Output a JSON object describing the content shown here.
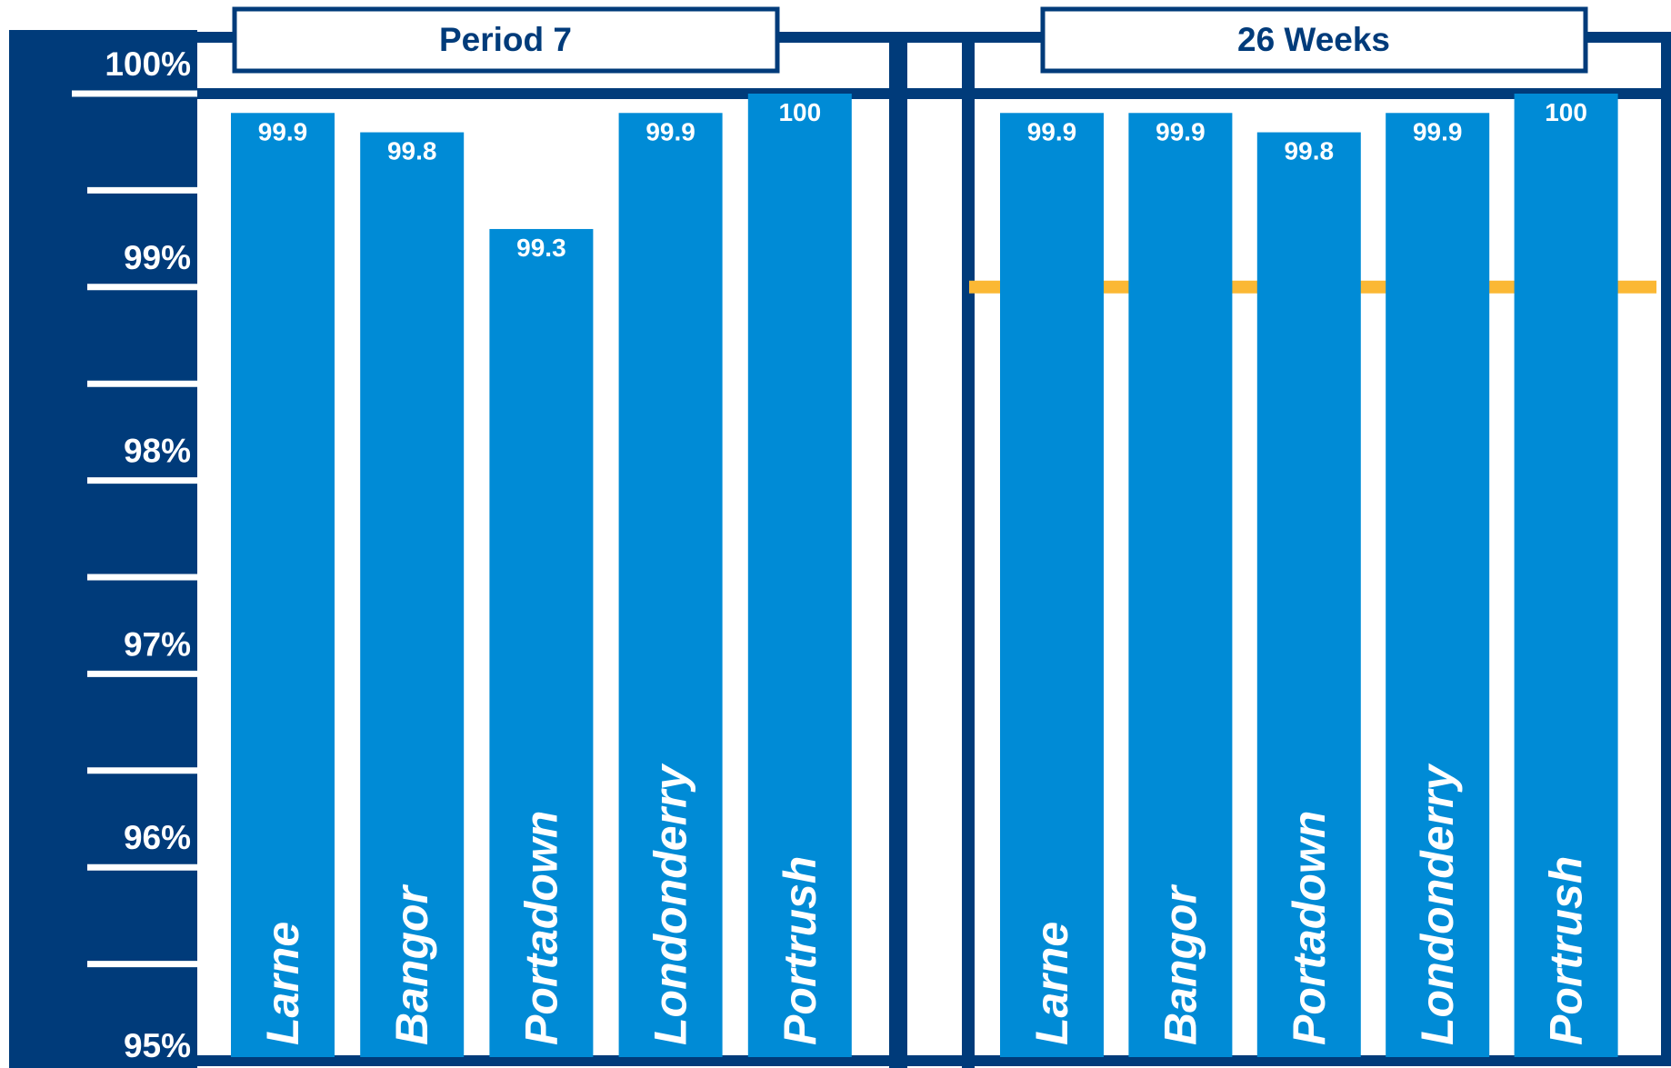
{
  "colors": {
    "frame": "#003b7a",
    "bar": "#008bd6",
    "target_line": "#fbb834",
    "background": "#ffffff"
  },
  "chart_data": [
    {
      "type": "bar",
      "title": "Period 7",
      "categories": [
        "Larne",
        "Bangor",
        "Portadown",
        "Londonderry",
        "Portrush"
      ],
      "values": [
        99.9,
        99.8,
        99.3,
        99.9,
        100
      ],
      "value_labels": [
        "99.9",
        "99.8",
        "99.3",
        "99.9",
        "100"
      ],
      "ylim": [
        95,
        100
      ],
      "yticks": [
        "95%",
        "96%",
        "97%",
        "98%",
        "99%",
        "100%"
      ]
    },
    {
      "type": "bar",
      "title": "26 Weeks",
      "categories": [
        "Larne",
        "Bangor",
        "Portadown",
        "Londonderry",
        "Portrush"
      ],
      "values": [
        99.9,
        99.9,
        99.8,
        99.9,
        100
      ],
      "value_labels": [
        "99.9",
        "99.9",
        "99.8",
        "99.9",
        "100"
      ],
      "ylim": [
        95,
        100
      ],
      "target_line": 99
    }
  ]
}
